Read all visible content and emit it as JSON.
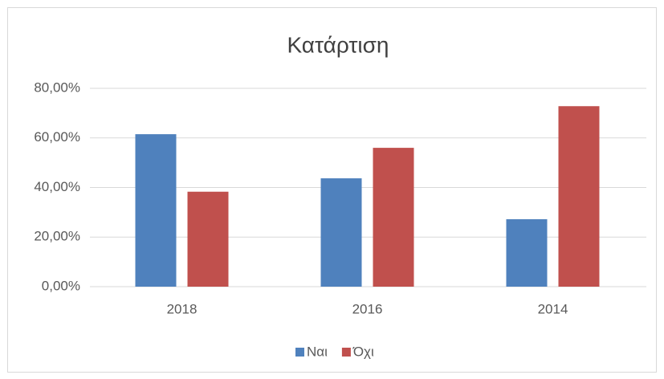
{
  "chart_data": {
    "type": "bar",
    "title": "Κατάρτιση",
    "categories": [
      "2018",
      "2016",
      "2014"
    ],
    "series": [
      {
        "name": "Ναι",
        "color": "#4f81bd",
        "values": [
          61.5,
          43.7,
          27.2
        ]
      },
      {
        "name": "Όχι",
        "color": "#c0504d",
        "values": [
          38.3,
          56.0,
          72.8
        ]
      }
    ],
    "ylim": [
      0,
      80
    ],
    "yticks": [
      {
        "value": 0,
        "label": "0,00%"
      },
      {
        "value": 20,
        "label": "20,00%"
      },
      {
        "value": 40,
        "label": "40,00%"
      },
      {
        "value": 60,
        "label": "60,00%"
      },
      {
        "value": 80,
        "label": "80,00%"
      }
    ],
    "grid": true,
    "legend": "bottom"
  }
}
